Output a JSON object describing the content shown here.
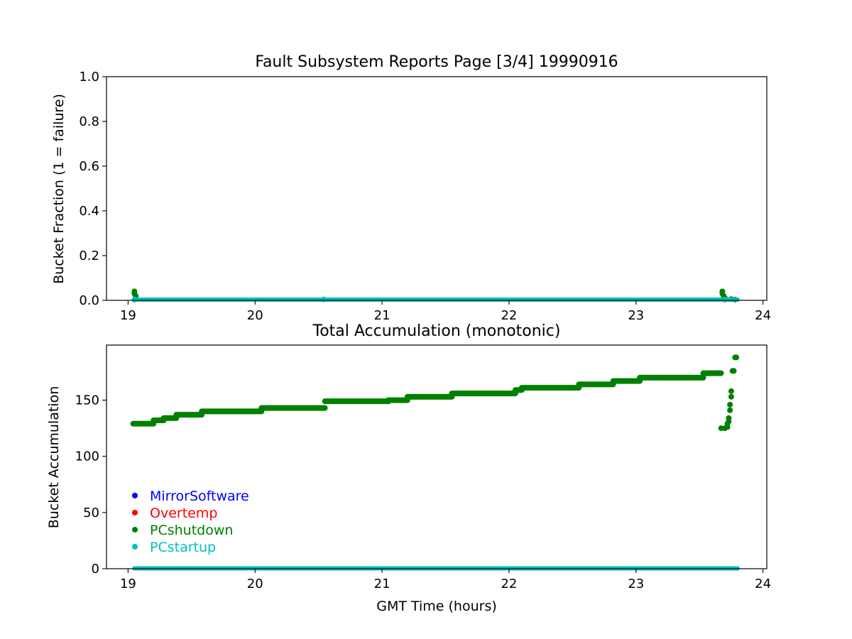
{
  "chart_data": [
    {
      "type": "scatter",
      "title": "Fault Subsystem Reports Page [3/4] 19990916",
      "xlabel": "",
      "ylabel": "Bucket Fraction (1 = failure)",
      "xlim": [
        18.83,
        24.03
      ],
      "ylim": [
        0,
        1.0
      ],
      "xticks": [
        "19",
        "20",
        "21",
        "22",
        "23",
        "24"
      ],
      "yticks": [
        "0.0",
        "0.2",
        "0.4",
        "0.6",
        "0.8",
        "1.0"
      ],
      "grid": false,
      "series": [
        {
          "name": "PCshutdown",
          "color": "#008000",
          "points": [
            [
              19.05,
              0.04
            ],
            [
              19.05,
              0.03
            ],
            [
              19.06,
              0.02
            ],
            [
              19.06,
              0.01
            ],
            [
              23.68,
              0.04
            ],
            [
              23.68,
              0.03
            ],
            [
              23.69,
              0.02
            ],
            [
              23.7,
              0.01
            ],
            [
              23.75,
              0.005
            ],
            [
              23.78,
              0.003
            ]
          ]
        },
        {
          "name": "PCstartup",
          "color": "#00bfbf",
          "points": [
            [
              19.05,
              0.003
            ],
            [
              20.54,
              0.004
            ],
            [
              23.7,
              0.003
            ]
          ],
          "baseline": {
            "x": [
              19.05,
              23.8
            ],
            "y": 0.003
          }
        }
      ]
    },
    {
      "type": "scatter",
      "title": "Total Accumulation (monotonic)",
      "xlabel": "GMT Time (hours)",
      "ylabel": "Bucket Accumulation",
      "xlim": [
        18.83,
        24.03
      ],
      "ylim": [
        0,
        199
      ],
      "xticks": [
        "19",
        "20",
        "21",
        "22",
        "23",
        "24"
      ],
      "yticks": [
        "0",
        "50",
        "100",
        "150"
      ],
      "grid": false,
      "legend_position": "lower-left",
      "series": [
        {
          "name": "MirrorSoftware",
          "color": "#0000ff",
          "steps": []
        },
        {
          "name": "Overtemp",
          "color": "#ff0000",
          "steps": []
        },
        {
          "name": "PCshutdown",
          "color": "#008000",
          "steps": [
            [
              19.04,
              19.2,
              129
            ],
            [
              19.2,
              19.28,
              132
            ],
            [
              19.28,
              19.38,
              134
            ],
            [
              19.38,
              19.58,
              137
            ],
            [
              19.58,
              20.05,
              140
            ],
            [
              20.05,
              20.55,
              143
            ],
            [
              20.55,
              21.05,
              149
            ],
            [
              21.05,
              21.2,
              150
            ],
            [
              21.2,
              21.55,
              153
            ],
            [
              21.55,
              22.05,
              156
            ],
            [
              22.05,
              22.1,
              159
            ],
            [
              22.1,
              22.55,
              161
            ],
            [
              22.55,
              22.82,
              164
            ],
            [
              22.82,
              23.03,
              167
            ],
            [
              23.03,
              23.53,
              170
            ],
            [
              23.53,
              23.67,
              174
            ]
          ],
          "points": [
            [
              23.67,
              125
            ],
            [
              23.7,
              125
            ],
            [
              23.72,
              126
            ],
            [
              23.72,
              129
            ],
            [
              23.73,
              131
            ],
            [
              23.73,
              134
            ],
            [
              23.74,
              141
            ],
            [
              23.74,
              146
            ],
            [
              23.75,
              153
            ],
            [
              23.75,
              158
            ],
            [
              23.76,
              176
            ],
            [
              23.77,
              176
            ],
            [
              23.78,
              188
            ],
            [
              23.79,
              188
            ]
          ]
        },
        {
          "name": "PCstartup",
          "color": "#00bfbf",
          "baseline": {
            "x": [
              19.05,
              23.8
            ],
            "y": 0.3
          }
        }
      ]
    }
  ]
}
